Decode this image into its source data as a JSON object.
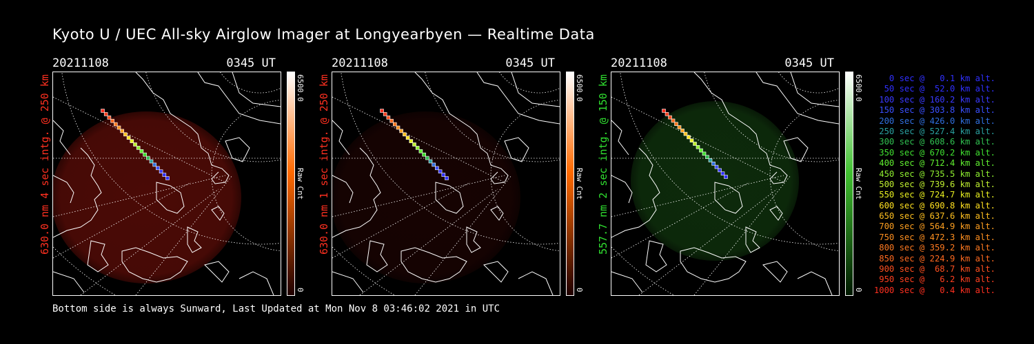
{
  "title": "Kyoto U / UEC All-sky Airglow Imager at Longyearbyen — Realtime Data",
  "footer": "Bottom side is always Sunward, Last Updated at Mon Nov  8 03:46:02 2021 in UTC",
  "panels": [
    {
      "date": "20211108",
      "time": "0345 UT",
      "ylabel": "630.0 nm 4 sec intg. @ 250 km",
      "ylabel_color": "#ff3020",
      "cbar_max": "6500.0",
      "cbar_unit": "Raw Cnt",
      "cbar_min": "0",
      "glow_color": "#4a0a06",
      "cbar_top": "#ffffff",
      "cbar_mid": "#ff6a00",
      "cbar_bottom": "#200000"
    },
    {
      "date": "20211108",
      "time": "0345 UT",
      "ylabel": "630.0 nm 1 sec intg. @ 250 km",
      "ylabel_color": "#ff3020",
      "cbar_max": "6500.0",
      "cbar_unit": "Raw Cnt",
      "cbar_min": "0",
      "glow_color": "#160302",
      "cbar_top": "#ffffff",
      "cbar_mid": "#ff6a00",
      "cbar_bottom": "#200000"
    },
    {
      "date": "20211108",
      "time": "0345 UT",
      "ylabel": "557.7 nm 2 sec intg. @ 150 km",
      "ylabel_color": "#30e030",
      "cbar_max": "6500.0",
      "cbar_unit": "Raw Cnt",
      "cbar_min": "0",
      "glow_color": "#0d2a0b",
      "cbar_top": "#ffffff",
      "cbar_mid": "#40c030",
      "cbar_bottom": "#001800"
    }
  ],
  "legend": [
    {
      "text": "0 sec @   0.1 km alt.",
      "color": "#3030ff"
    },
    {
      "text": "50 sec @  52.0 km alt.",
      "color": "#3030ff"
    },
    {
      "text": "100 sec @ 160.2 km alt.",
      "color": "#3a3aff"
    },
    {
      "text": "150 sec @ 303.8 km alt.",
      "color": "#3a50ff"
    },
    {
      "text": "200 sec @ 426.0 km alt.",
      "color": "#3070e0"
    },
    {
      "text": "250 sec @ 527.4 km alt.",
      "color": "#2aa0a0"
    },
    {
      "text": "300 sec @ 608.6 km alt.",
      "color": "#30c050"
    },
    {
      "text": "350 sec @ 670.2 km alt.",
      "color": "#40e030"
    },
    {
      "text": "400 sec @ 712.4 km alt.",
      "color": "#60f030"
    },
    {
      "text": "450 sec @ 735.5 km alt.",
      "color": "#90f030"
    },
    {
      "text": "500 sec @ 739.6 km alt.",
      "color": "#c0f030"
    },
    {
      "text": "550 sec @ 724.7 km alt.",
      "color": "#e8f020"
    },
    {
      "text": "600 sec @ 690.8 km alt.",
      "color": "#ffe020"
    },
    {
      "text": "650 sec @ 637.6 km alt.",
      "color": "#ffc020"
    },
    {
      "text": "700 sec @ 564.9 km alt.",
      "color": "#ffa020"
    },
    {
      "text": "750 sec @ 472.3 km alt.",
      "color": "#ff9020"
    },
    {
      "text": "800 sec @ 359.2 km alt.",
      "color": "#ff7a20"
    },
    {
      "text": "850 sec @ 224.9 km alt.",
      "color": "#ff6a20"
    },
    {
      "text": "900 sec @  68.7 km alt.",
      "color": "#ff5020"
    },
    {
      "text": "950 sec @   6.2 km alt.",
      "color": "#ff4020"
    },
    {
      "text": "1000 sec @   0.4 km alt.",
      "color": "#ff3020"
    }
  ]
}
